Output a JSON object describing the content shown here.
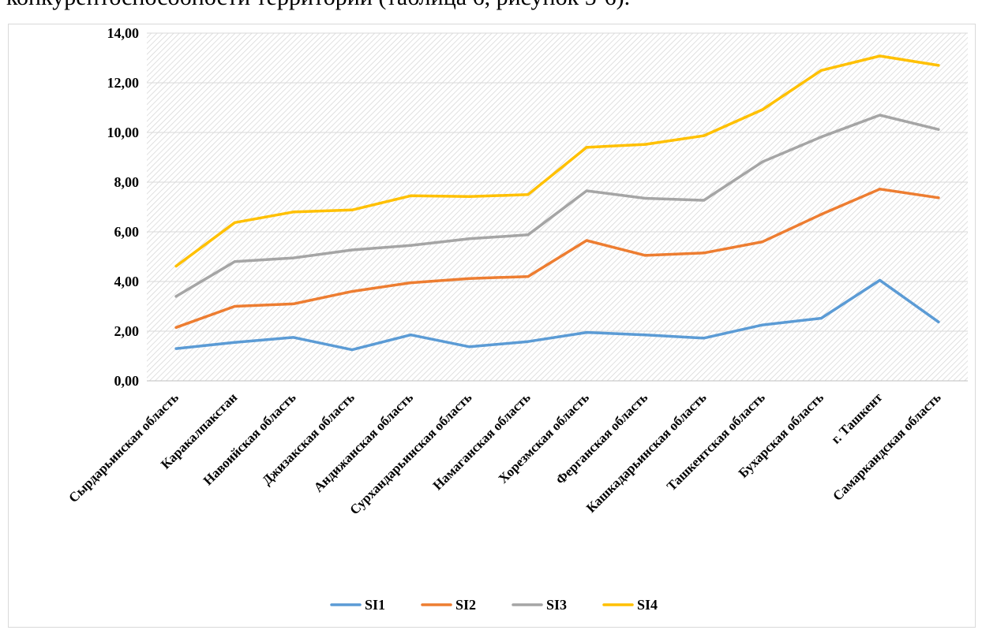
{
  "document": {
    "top_text": "конкурентоспособности территорий (таблица 6, рисунок 5-6)."
  },
  "chart_data": {
    "type": "line",
    "title": "",
    "xlabel": "",
    "ylabel": "",
    "ylim": [
      0,
      14
    ],
    "yticks": [
      "0,00",
      "2,00",
      "4,00",
      "6,00",
      "8,00",
      "10,00",
      "12,00",
      "14,00"
    ],
    "grid": true,
    "legend_position": "bottom",
    "categories": [
      "Сырдарьинская область",
      "Каракалпакстан",
      "Навоийская область",
      "Джизакская область",
      "Андижанская область",
      "Сурхандарьинская область",
      "Намаганская область",
      "Хорезмская область",
      "Ферганская область",
      "Кашкадарьинская область",
      "Ташкентская область",
      "Бухарская область",
      "г. Ташкент",
      "Самаркандская область"
    ],
    "series": [
      {
        "name": "SI1",
        "color": "#5b9bd5",
        "values": [
          1.3,
          1.55,
          1.75,
          1.25,
          1.85,
          1.37,
          1.58,
          1.95,
          1.85,
          1.72,
          2.25,
          2.52,
          4.05,
          2.37
        ]
      },
      {
        "name": "SI2",
        "color": "#ed7d31",
        "values": [
          2.15,
          3.0,
          3.1,
          3.6,
          3.95,
          4.12,
          4.2,
          5.65,
          5.05,
          5.15,
          5.6,
          6.7,
          7.72,
          7.37
        ]
      },
      {
        "name": "SI3",
        "color": "#a5a5a5",
        "values": [
          3.4,
          4.8,
          4.95,
          5.27,
          5.45,
          5.72,
          5.88,
          7.65,
          7.35,
          7.27,
          8.82,
          9.82,
          10.7,
          10.12
        ]
      },
      {
        "name": "SI4",
        "color": "#ffc000",
        "values": [
          4.62,
          6.37,
          6.8,
          6.88,
          7.45,
          7.42,
          7.5,
          9.4,
          9.52,
          9.87,
          10.92,
          12.5,
          13.08,
          12.7
        ]
      }
    ]
  }
}
